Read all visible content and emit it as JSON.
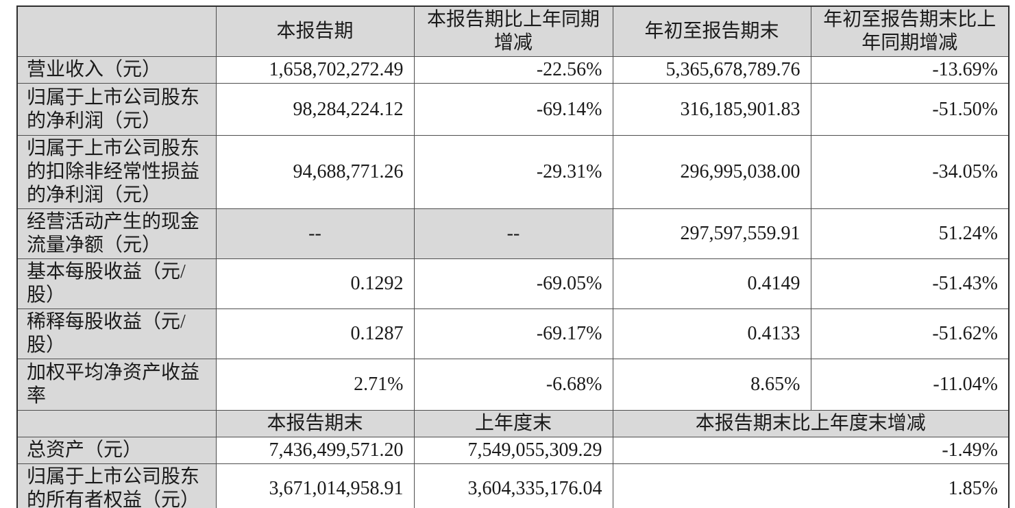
{
  "table": {
    "header": {
      "corner": "",
      "current_period": "本报告期",
      "current_period_yoy": "本报告期比上年同期增减",
      "year_to_date": "年初至报告期末",
      "year_to_date_yoy": "年初至报告期末比上年同期增减"
    },
    "rows": [
      {
        "label": "营业收入（元）",
        "v1": "1,658,702,272.49",
        "v2": "-22.56%",
        "v3": "5,365,678,789.76",
        "v4": "-13.69%"
      },
      {
        "label": "归属于上市公司股东的净利润（元）",
        "v1": "98,284,224.12",
        "v2": "-69.14%",
        "v3": "316,185,901.83",
        "v4": "-51.50%"
      },
      {
        "label": "归属于上市公司股东的扣除非经常性损益的净利润（元）",
        "v1": "94,688,771.26",
        "v2": "-29.31%",
        "v3": "296,995,038.00",
        "v4": "-34.05%"
      },
      {
        "label": "经营活动产生的现金流量净额（元）",
        "v1": "--",
        "v2": "--",
        "v3": "297,597,559.91",
        "v4": "51.24%"
      },
      {
        "label": "基本每股收益（元/股）",
        "v1": "0.1292",
        "v2": "-69.05%",
        "v3": "0.4149",
        "v4": "-51.43%"
      },
      {
        "label": "稀释每股收益（元/股）",
        "v1": "0.1287",
        "v2": "-69.17%",
        "v3": "0.4133",
        "v4": "-51.62%"
      },
      {
        "label": "加权平均净资产收益率",
        "v1": "2.71%",
        "v2": "-6.68%",
        "v3": "8.65%",
        "v4": "-11.04%"
      }
    ],
    "subheader": {
      "corner": "",
      "period_end": "本报告期末",
      "prior_year_end": "上年度末",
      "period_end_vs_prior": "本报告期末比上年度末增减"
    },
    "bottom_rows": [
      {
        "label": "总资产（元）",
        "v1": "7,436,499,571.20",
        "v2": "7,549,055,309.29",
        "v3": "-1.49%"
      },
      {
        "label": "归属于上市公司股东的所有者权益（元）",
        "v1": "3,671,014,958.91",
        "v2": "3,604,335,176.04",
        "v3": "1.85%"
      }
    ],
    "colors": {
      "shaded_cell_bg": "#d9d9d9",
      "grid_line": "#4d4d4d",
      "text": "#1a1a1a"
    }
  }
}
